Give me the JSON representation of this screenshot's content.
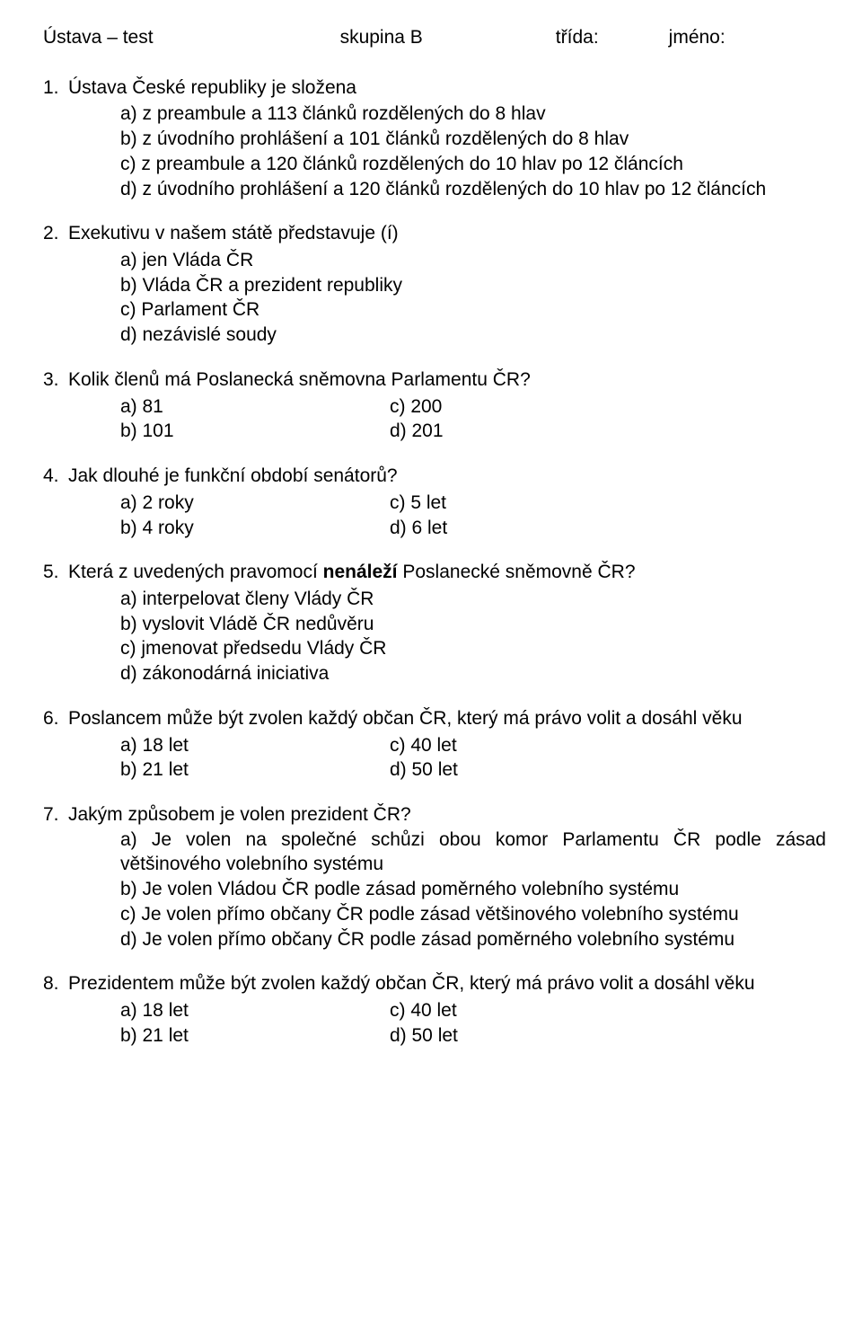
{
  "header": {
    "title": "Ústava – test",
    "group": "skupina B",
    "class_label": "třída:",
    "name_label": "jméno:"
  },
  "q1": {
    "num": "1.",
    "text": "Ústava České republiky je složena",
    "a": "a) z preambule a 113 článků rozdělených do 8 hlav",
    "b": "b) z úvodního prohlášení a 101 článků rozdělených do 8 hlav",
    "c": "c) z preambule a 120 článků rozdělených do 10 hlav po 12 článcích",
    "d": "d) z úvodního prohlášení a 120 článků rozdělených do 10 hlav po 12 článcích"
  },
  "q2": {
    "num": "2.",
    "text": "Exekutivu v našem státě představuje (í)",
    "a": "a) jen Vláda ČR",
    "b": "b) Vláda ČR a prezident republiky",
    "c": "c) Parlament ČR",
    "d": "d) nezávislé soudy"
  },
  "q3": {
    "num": "3.",
    "text": "Kolik členů má Poslanecká sněmovna Parlamentu ČR?",
    "a": "a) 81",
    "b": "b) 101",
    "c": "c) 200",
    "d": "d) 201"
  },
  "q4": {
    "num": "4.",
    "text": "Jak dlouhé je funkční období senátorů?",
    "a": "a) 2 roky",
    "b": "b) 4 roky",
    "c": "c) 5 let",
    "d": "d) 6 let"
  },
  "q5": {
    "num": "5.",
    "text_before": "Která z uvedených pravomocí ",
    "text_bold": "nenáleží",
    "text_after": " Poslanecké sněmovně ČR?",
    "a": "a)  interpelovat členy Vlády ČR",
    "b": "b) vyslovit Vládě ČR nedůvěru",
    "c": "c) jmenovat předsedu Vlády ČR",
    "d": "d) zákonodárná iniciativa"
  },
  "q6": {
    "num": "6.",
    "text": "Poslancem může být zvolen každý občan ČR, který má právo volit a dosáhl věku",
    "a": "a) 18 let",
    "b": "b) 21 let",
    "c": "c) 40 let",
    "d": "d) 50 let"
  },
  "q7": {
    "num": "7.",
    "text": "Jakým způsobem je volen prezident ČR?",
    "a": "a) Je volen na společné schůzi obou komor Parlamentu ČR podle zásad většinového volebního systému",
    "b": "b) Je volen Vládou ČR podle zásad poměrného volebního systému",
    "c": "c) Je volen přímo občany ČR podle zásad většinového volebního systému",
    "d": "d) Je volen přímo občany ČR podle zásad poměrného volebního systému"
  },
  "q8": {
    "num": "8.",
    "text": "Prezidentem může být zvolen každý občan ČR, který má právo volit a dosáhl věku",
    "a": "a) 18 let",
    "b": "b) 21 let",
    "c": "c) 40 let",
    "d": "d) 50 let"
  }
}
